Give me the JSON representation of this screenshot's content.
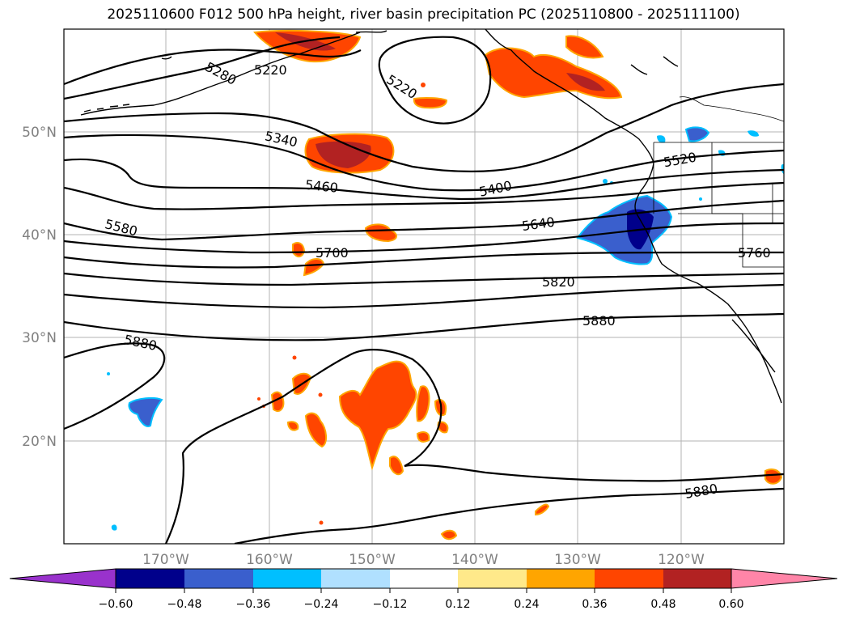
{
  "title": "2025110600 F012 500 hPa height, river basin precipitation PC (2025110800 - 2025111100)",
  "map": {
    "lat_labels": [
      "50°N",
      "40°N",
      "30°N",
      "20°N"
    ],
    "lon_labels": [
      "170°W",
      "160°W",
      "150°W",
      "140°W",
      "130°W",
      "120°W"
    ],
    "contour_labels": [
      "5220",
      "5280",
      "5220",
      "5340",
      "5460",
      "5400",
      "5520",
      "5580",
      "5640",
      "5700",
      "5760",
      "5820",
      "5880",
      "5880",
      "5880"
    ]
  },
  "colorbar": {
    "tick_labels": [
      "−0.60",
      "−0.48",
      "−0.36",
      "−0.24",
      "−0.12",
      "0.12",
      "0.24",
      "0.36",
      "0.48",
      "0.60"
    ],
    "colors": [
      "#9932cc",
      "#00008b",
      "#3a5fcd",
      "#00bfff",
      "#b0e0ff",
      "#ffffff",
      "#ffe98a",
      "#ffa500",
      "#ff4500",
      "#b22222",
      "#ff85a8"
    ]
  }
}
